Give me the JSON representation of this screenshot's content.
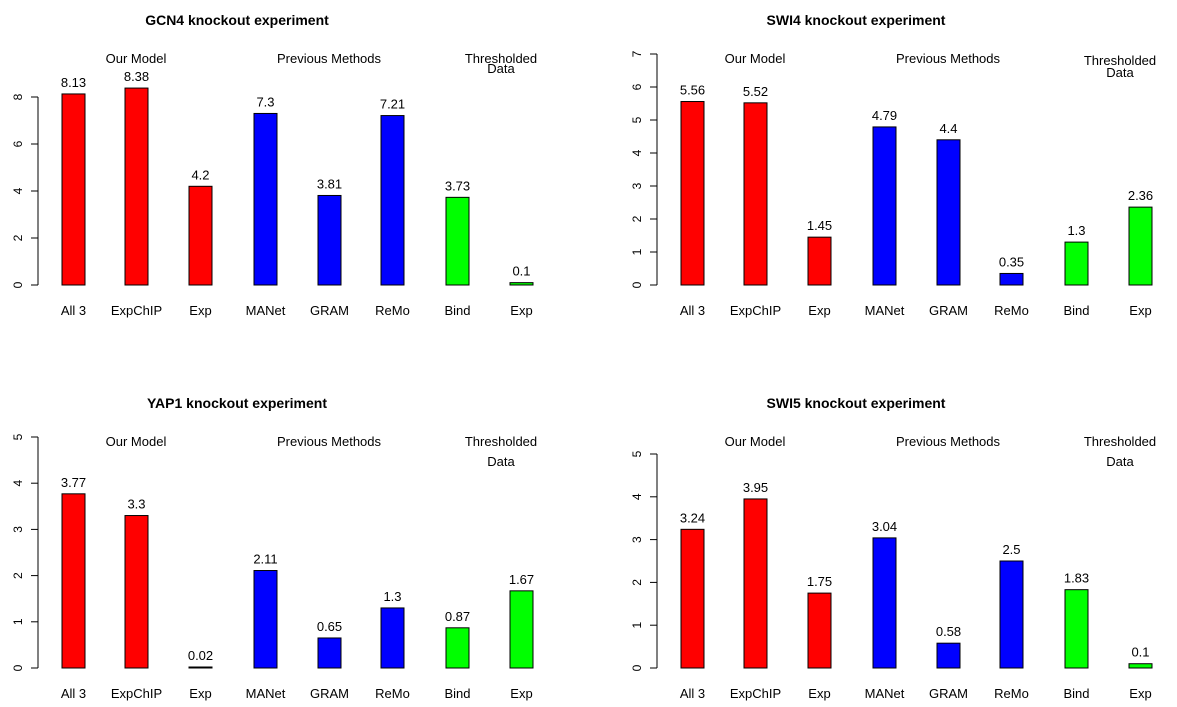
{
  "chart_data": [
    {
      "type": "bar",
      "title": "GCN4 knockout experiment",
      "categories": [
        "All 3",
        "ExpChIP",
        "Exp",
        "MANet",
        "GRAM",
        "ReMo",
        "Bind",
        "Exp"
      ],
      "values": [
        8.13,
        8.38,
        4.2,
        7.3,
        3.81,
        7.21,
        3.73,
        0.1
      ],
      "value_labels": [
        "8.13",
        "8.38",
        "4.2",
        "7.3",
        "3.81",
        "7.21",
        "3.73",
        "0.1"
      ],
      "bar_groups": [
        "Our Model",
        "Our Model",
        "Our Model",
        "Previous Methods",
        "Previous Methods",
        "Previous Methods",
        "Thresholded Data",
        "Thresholded Data"
      ],
      "groups": [
        {
          "label_lines": [
            "Our Model"
          ]
        },
        {
          "label_lines": [
            "Previous Methods"
          ]
        },
        {
          "label_lines": [
            "Thresholded",
            "Data"
          ]
        }
      ],
      "yticks": [
        "0",
        "2",
        "4",
        "6",
        "8"
      ],
      "ylim": [
        0,
        9.5
      ],
      "xlabel": "",
      "ylabel": "",
      "grid": false
    },
    {
      "type": "bar",
      "title": "SWI4 knockout experiment",
      "categories": [
        "All 3",
        "ExpChIP",
        "Exp",
        "MANet",
        "GRAM",
        "ReMo",
        "Bind",
        "Exp"
      ],
      "values": [
        5.56,
        5.52,
        1.45,
        4.79,
        4.4,
        0.35,
        1.3,
        2.36
      ],
      "value_labels": [
        "5.56",
        "5.52",
        "1.45",
        "4.79",
        "4.4",
        "0.35",
        "1.3",
        "2.36"
      ],
      "bar_groups": [
        "Our Model",
        "Our Model",
        "Our Model",
        "Previous Methods",
        "Previous Methods",
        "Previous Methods",
        "Thresholded Data",
        "Thresholded Data"
      ],
      "groups": [
        {
          "label_lines": [
            "Our Model"
          ]
        },
        {
          "label_lines": [
            "Previous Methods"
          ]
        },
        {
          "label_lines": [
            "Thresholded",
            "Data"
          ]
        }
      ],
      "yticks": [
        "0",
        "1",
        "2",
        "3",
        "4",
        "5",
        "6",
        "7"
      ],
      "ylim": [
        0,
        7
      ],
      "xlabel": "",
      "ylabel": "",
      "grid": false
    },
    {
      "type": "bar",
      "title": "YAP1 knockout experiment",
      "categories": [
        "All 3",
        "ExpChIP",
        "Exp",
        "MANet",
        "GRAM",
        "ReMo",
        "Bind",
        "Exp"
      ],
      "values": [
        3.77,
        3.3,
        0.02,
        2.11,
        0.65,
        1.3,
        0.87,
        1.67
      ],
      "value_labels": [
        "3.77",
        "3.3",
        "0.02",
        "2.11",
        "0.65",
        "1.3",
        "0.87",
        "1.67"
      ],
      "bar_groups": [
        "Our Model",
        "Our Model",
        "Our Model",
        "Previous Methods",
        "Previous Methods",
        "Previous Methods",
        "Thresholded Data",
        "Thresholded Data"
      ],
      "groups": [
        {
          "label_lines": [
            "Our Model"
          ]
        },
        {
          "label_lines": [
            "Previous Methods"
          ]
        },
        {
          "label_lines": [
            "Thresholded",
            "Data"
          ]
        }
      ],
      "yticks": [
        "0",
        "1",
        "2",
        "3",
        "4",
        "5"
      ],
      "ylim": [
        0,
        5
      ],
      "xlabel": "",
      "ylabel": "",
      "grid": false
    },
    {
      "type": "bar",
      "title": "SWI5 knockout experiment",
      "categories": [
        "All 3",
        "ExpChIP",
        "Exp",
        "MANet",
        "GRAM",
        "ReMo",
        "Bind",
        "Exp"
      ],
      "values": [
        3.24,
        3.95,
        1.75,
        3.04,
        0.58,
        2.5,
        1.83,
        0.1
      ],
      "value_labels": [
        "3.24",
        "3.95",
        "1.75",
        "3.04",
        "0.58",
        "2.5",
        "1.83",
        "0.1"
      ],
      "bar_groups": [
        "Our Model",
        "Our Model",
        "Our Model",
        "Previous Methods",
        "Previous Methods",
        "Previous Methods",
        "Thresholded Data",
        "Thresholded Data"
      ],
      "groups": [
        {
          "label_lines": [
            "Our Model"
          ]
        },
        {
          "label_lines": [
            "Previous Methods"
          ]
        },
        {
          "label_lines": [
            "Thresholded",
            "Data"
          ]
        }
      ],
      "yticks": [
        "0",
        "1",
        "2",
        "3",
        "4",
        "5"
      ],
      "ylim": [
        0,
        5
      ],
      "xlabel": "",
      "ylabel": "",
      "grid": false
    }
  ],
  "colors": {
    "Our Model": "#ff0000",
    "Previous Methods": "#0000ff",
    "Thresholded Data": "#00ff00"
  }
}
